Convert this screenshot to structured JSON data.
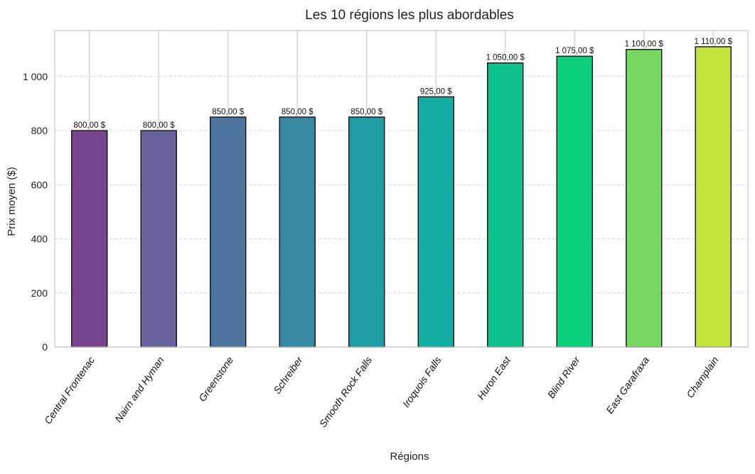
{
  "chart_data": {
    "type": "bar",
    "title": "Les 10 régions les plus abordables",
    "xlabel": "Régions",
    "ylabel": "Prix moyen ($)",
    "ylim": [
      0,
      1170
    ],
    "yticks": [
      0,
      200,
      400,
      600,
      800,
      1000
    ],
    "ytick_labels": [
      "0",
      "200",
      "400",
      "600",
      "800",
      "1 000"
    ],
    "grid": true,
    "categories": [
      "Central Frontenac",
      "Nairn and Hyman",
      "Greenstone",
      "Schreiber",
      "Smooth Rock Falls",
      "Iroquois Falls",
      "Huron East",
      "Blind River",
      "East Garafraxa",
      "Champlain"
    ],
    "values": [
      800,
      800,
      850,
      850,
      850,
      925,
      1050,
      1075,
      1100,
      1110
    ],
    "value_labels": [
      "800,00 $",
      "800,00 $",
      "850,00 $",
      "850,00 $",
      "850,00 $",
      "925,00 $",
      "1 050,00 $",
      "1 075,00 $",
      "1 100,00 $",
      "1 110,00 $"
    ],
    "colors": [
      "#77468f",
      "#69619c",
      "#4e74a0",
      "#3789a1",
      "#1e9da5",
      "#10ada0",
      "#0ec08b",
      "#0dd07c",
      "#77d962",
      "#c4e43e"
    ]
  }
}
